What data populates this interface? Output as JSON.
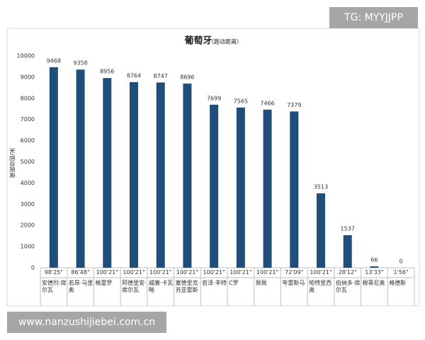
{
  "chart_data": {
    "type": "bar",
    "title": "葡萄牙",
    "subtitle": "（跑动距离）",
    "y_label": "米/跑动距离",
    "categories": [
      "安德烈·席尔瓦",
      "若昂·马里奥",
      "格雷罗",
      "阿德里安·席尔瓦",
      "威廉·卡瓦略",
      "塞德里克·苏亚雷斯",
      "若泽·丰特",
      "C罗",
      "佩佩",
      "夸雷斯马",
      "帕特里西奥",
      "伯纳多·席尔瓦",
      "穆蒂尼奥",
      "格德斯"
    ],
    "times": [
      "98'25\"",
      "86'48\"",
      "100'21\"",
      "100'21\"",
      "100'21\"",
      "100'21\"",
      "100'21\"",
      "100'21\"",
      "100'21\"",
      "72'09\"",
      "100'21\"",
      "28'12\"",
      "13'33\"",
      "1'56\""
    ],
    "values": [
      9468,
      9358,
      8956,
      8764,
      8747,
      8696,
      7699,
      7565,
      7466,
      7379,
      3513,
      1537,
      66,
      0
    ],
    "color": "#1f4e79",
    "ylim": [
      0,
      10000
    ],
    "yticks": [
      0,
      1000,
      2000,
      3000,
      4000,
      5000,
      6000,
      7000,
      8000,
      9000,
      10000
    ],
    "grid": false
  },
  "watermarks": {
    "top": "TG: MYYJJPP",
    "bottom": "www.nanzushijiebei.com.cn"
  }
}
